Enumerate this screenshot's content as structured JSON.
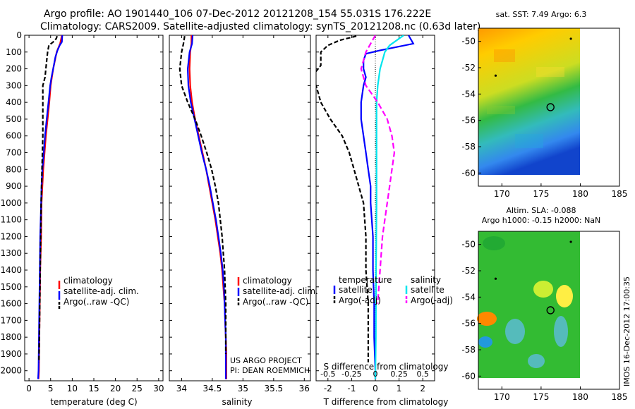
{
  "header": {
    "line1": "Argo profile: AO 1901440_106 07-Dec-2012 20121208_154 55.031S 176.222E",
    "line2": "Climatology: CARS2009. Satellite-adjusted climatology: synTS_20121208.nc (0.63d later)"
  },
  "colors": {
    "climatology": "#ff0000",
    "satellite": "#0000ff",
    "argo": "#000000",
    "sat_salinity": "#00e5ee",
    "argo_salinity": "#ff00ff"
  },
  "chart_data": [
    {
      "type": "line",
      "id": "temperature",
      "xlabel": "temperature (deg C)",
      "ylabel": "",
      "xlim": [
        -1,
        31
      ],
      "ylim": [
        2060,
        0
      ],
      "xticks": [
        0,
        5,
        10,
        15,
        20,
        25,
        30
      ],
      "yticks": [
        0,
        100,
        200,
        300,
        400,
        500,
        600,
        700,
        800,
        900,
        1000,
        1100,
        1200,
        1300,
        1400,
        1500,
        1600,
        1700,
        1800,
        1900,
        2000
      ],
      "legend": [
        "climatology",
        "satellite-adj. clim.",
        "Argo(..raw -QC)"
      ],
      "series": [
        {
          "name": "climatology",
          "color": "#ff0000",
          "dash": "",
          "points": [
            [
              7.6,
              0
            ],
            [
              7.2,
              50
            ],
            [
              6.7,
              80
            ],
            [
              6.4,
              100
            ],
            [
              6.0,
              150
            ],
            [
              5.6,
              200
            ],
            [
              5.3,
              250
            ],
            [
              5.0,
              300
            ],
            [
              4.7,
              400
            ],
            [
              4.3,
              500
            ],
            [
              3.9,
              600
            ],
            [
              3.6,
              700
            ],
            [
              3.3,
              800
            ],
            [
              3.1,
              900
            ],
            [
              2.9,
              1000
            ],
            [
              2.8,
              1200
            ],
            [
              2.6,
              1400
            ],
            [
              2.5,
              1600
            ],
            [
              2.4,
              1800
            ],
            [
              2.3,
              2000
            ],
            [
              2.2,
              2050
            ]
          ]
        },
        {
          "name": "satellite-adj. clim.",
          "color": "#0000ff",
          "dash": "",
          "points": [
            [
              7.7,
              0
            ],
            [
              7.6,
              40
            ],
            [
              7.1,
              60
            ],
            [
              6.6,
              90
            ],
            [
              6.1,
              130
            ],
            [
              5.6,
              200
            ],
            [
              5.2,
              250
            ],
            [
              4.9,
              300
            ],
            [
              4.5,
              400
            ],
            [
              4.1,
              500
            ],
            [
              3.7,
              600
            ],
            [
              3.4,
              700
            ],
            [
              3.1,
              800
            ],
            [
              2.9,
              900
            ],
            [
              2.8,
              1000
            ],
            [
              2.6,
              1200
            ],
            [
              2.5,
              1400
            ],
            [
              2.4,
              1600
            ],
            [
              2.3,
              1800
            ],
            [
              2.2,
              2000
            ],
            [
              2.1,
              2050
            ]
          ]
        },
        {
          "name": "Argo(..raw -QC)",
          "color": "#000000",
          "dash": "6,3",
          "points": [
            [
              6.5,
              5
            ],
            [
              6.3,
              20
            ],
            [
              5.6,
              40
            ],
            [
              4.6,
              60
            ],
            [
              4.3,
              100
            ],
            [
              4.1,
              150
            ],
            [
              3.9,
              200
            ],
            [
              3.7,
              250
            ],
            [
              3.2,
              300
            ],
            [
              3.2,
              400
            ],
            [
              3.2,
              500
            ],
            [
              3.2,
              600
            ],
            [
              3.1,
              700
            ],
            [
              3.0,
              800
            ],
            [
              2.9,
              900
            ],
            [
              2.8,
              1000
            ],
            [
              2.7,
              1200
            ],
            [
              2.6,
              1400
            ],
            [
              2.5,
              1600
            ],
            [
              2.4,
              1800
            ],
            [
              2.3,
              1950
            ]
          ]
        }
      ]
    },
    {
      "type": "line",
      "id": "salinity",
      "xlabel": "salinity",
      "xlim": [
        33.8,
        36.1
      ],
      "ylim": [
        2060,
        0
      ],
      "xticks": [
        34,
        34.5,
        35,
        35.5,
        36
      ],
      "legend": [
        "climatology",
        "satellite-adj. clim.",
        "Argo(..raw -QC)"
      ],
      "series": [
        {
          "name": "climatology",
          "color": "#ff0000",
          "dash": "",
          "points": [
            [
              34.16,
              0
            ],
            [
              34.16,
              50
            ],
            [
              34.14,
              100
            ],
            [
              34.13,
              200
            ],
            [
              34.14,
              300
            ],
            [
              34.17,
              400
            ],
            [
              34.22,
              500
            ],
            [
              34.28,
              600
            ],
            [
              34.34,
              700
            ],
            [
              34.4,
              800
            ],
            [
              34.45,
              900
            ],
            [
              34.5,
              1000
            ],
            [
              34.55,
              1100
            ],
            [
              34.59,
              1200
            ],
            [
              34.63,
              1300
            ],
            [
              34.66,
              1400
            ],
            [
              34.68,
              1500
            ],
            [
              34.7,
              1600
            ],
            [
              34.71,
              1700
            ],
            [
              34.72,
              1800
            ],
            [
              34.73,
              1900
            ],
            [
              34.73,
              2050
            ]
          ]
        },
        {
          "name": "satellite-adj. clim.",
          "color": "#0000ff",
          "dash": "",
          "points": [
            [
              34.18,
              0
            ],
            [
              34.17,
              50
            ],
            [
              34.13,
              100
            ],
            [
              34.1,
              200
            ],
            [
              34.11,
              300
            ],
            [
              34.15,
              400
            ],
            [
              34.21,
              500
            ],
            [
              34.27,
              600
            ],
            [
              34.33,
              700
            ],
            [
              34.4,
              800
            ],
            [
              34.46,
              900
            ],
            [
              34.51,
              1000
            ],
            [
              34.56,
              1100
            ],
            [
              34.6,
              1200
            ],
            [
              34.64,
              1300
            ],
            [
              34.67,
              1400
            ],
            [
              34.69,
              1500
            ],
            [
              34.7,
              1600
            ],
            [
              34.71,
              1700
            ],
            [
              34.72,
              1800
            ],
            [
              34.72,
              1900
            ],
            [
              34.72,
              2050
            ]
          ]
        },
        {
          "name": "Argo(..raw -QC)",
          "color": "#000000",
          "dash": "6,3",
          "points": [
            [
              34.05,
              5
            ],
            [
              34.03,
              50
            ],
            [
              34.0,
              100
            ],
            [
              33.97,
              200
            ],
            [
              34.0,
              300
            ],
            [
              34.1,
              400
            ],
            [
              34.22,
              500
            ],
            [
              34.32,
              600
            ],
            [
              34.41,
              700
            ],
            [
              34.49,
              800
            ],
            [
              34.55,
              900
            ],
            [
              34.6,
              1000
            ],
            [
              34.63,
              1100
            ],
            [
              34.66,
              1200
            ],
            [
              34.68,
              1300
            ],
            [
              34.7,
              1400
            ],
            [
              34.71,
              1500
            ],
            [
              34.72,
              1600
            ],
            [
              34.72,
              1700
            ],
            [
              34.72,
              1800
            ],
            [
              34.72,
              1900
            ]
          ]
        }
      ]
    },
    {
      "type": "line",
      "id": "difference",
      "xlabel": "T difference from climatology",
      "x2label": "S difference from climatology",
      "xlim": [
        -2.5,
        2.5
      ],
      "ylim": [
        2060,
        0
      ],
      "xticks": [
        -2,
        -1,
        0,
        1,
        2
      ],
      "x2ticks": [
        "-0.5",
        "-0.25",
        "0",
        "0.25",
        "0.5"
      ],
      "legend": {
        "left_title": "temperature",
        "right_title": "salinity",
        "left": [
          "satellite",
          "Argo(-adj)"
        ],
        "right": [
          "satellite",
          "Argo(-adj)"
        ]
      },
      "series": [
        {
          "name": "satellite",
          "color": "#0000ff",
          "dash": "",
          "points": [
            [
              1.4,
              0
            ],
            [
              1.6,
              50
            ],
            [
              0.2,
              90
            ],
            [
              -0.4,
              110
            ],
            [
              -0.5,
              150
            ],
            [
              -0.5,
              200
            ],
            [
              -0.4,
              250
            ],
            [
              -0.5,
              300
            ],
            [
              -0.6,
              400
            ],
            [
              -0.6,
              500
            ],
            [
              -0.5,
              600
            ],
            [
              -0.4,
              700
            ],
            [
              -0.3,
              800
            ],
            [
              -0.2,
              900
            ],
            [
              -0.2,
              1000
            ],
            [
              -0.1,
              1200
            ],
            [
              -0.1,
              1400
            ],
            [
              -0.05,
              1600
            ],
            [
              -0.05,
              1800
            ],
            [
              0,
              2000
            ],
            [
              0,
              2050
            ]
          ]
        },
        {
          "name": "Argo(-adj)",
          "color": "#000000",
          "dash": "6,3",
          "points": [
            [
              -0.8,
              5
            ],
            [
              -1.5,
              30
            ],
            [
              -2.0,
              60
            ],
            [
              -2.3,
              100
            ],
            [
              -2.3,
              180
            ],
            [
              -2.7,
              250
            ],
            [
              -2.5,
              300
            ],
            [
              -2.3,
              400
            ],
            [
              -1.9,
              500
            ],
            [
              -1.4,
              600
            ],
            [
              -1.1,
              700
            ],
            [
              -0.9,
              800
            ],
            [
              -0.7,
              900
            ],
            [
              -0.5,
              1000
            ],
            [
              -0.4,
              1200
            ],
            [
              -0.4,
              1400
            ],
            [
              -0.3,
              1600
            ],
            [
              -0.3,
              1800
            ],
            [
              -0.3,
              1950
            ]
          ]
        },
        {
          "name": "satellite",
          "color": "#00e5ee",
          "dash": "",
          "points": [
            [
              1.2,
              0
            ],
            [
              0.6,
              60
            ],
            [
              0.4,
              100
            ],
            [
              0.3,
              150
            ],
            [
              0.2,
              200
            ],
            [
              0.1,
              300
            ],
            [
              0.05,
              400
            ],
            [
              0.05,
              500
            ],
            [
              0.05,
              700
            ],
            [
              0.05,
              1000
            ],
            [
              0.03,
              1400
            ],
            [
              0.02,
              1800
            ],
            [
              0,
              2050
            ]
          ]
        },
        {
          "name": "Argo(-adj)",
          "color": "#ff00ff",
          "dash": "8,4",
          "points": [
            [
              0.0,
              0
            ],
            [
              -0.4,
              100
            ],
            [
              -0.6,
              200
            ],
            [
              -0.4,
              300
            ],
            [
              0.1,
              400
            ],
            [
              0.5,
              500
            ],
            [
              0.7,
              600
            ],
            [
              0.8,
              700
            ],
            [
              0.7,
              800
            ],
            [
              0.6,
              900
            ],
            [
              0.5,
              1000
            ],
            [
              0.4,
              1100
            ],
            [
              0.3,
              1200
            ],
            [
              0.25,
              1300
            ],
            [
              0.2,
              1400
            ],
            [
              0.15,
              1500
            ],
            [
              0.1,
              1600
            ]
          ]
        }
      ]
    },
    {
      "type": "heatmap",
      "id": "sst_map",
      "title": "sat. SST: 7.49 Argo: 6.3",
      "xlim": [
        167,
        185
      ],
      "ylim": [
        -61,
        -49
      ],
      "xticks": [
        170,
        175,
        180,
        185
      ],
      "yticks": [
        -50,
        -52,
        -54,
        -56,
        -58,
        -60
      ],
      "data_extent": [
        167,
        180,
        -60,
        -49.5
      ],
      "argo_position": [
        176.2,
        -55.0
      ],
      "dots": [
        [
          169.2,
          -52.6
        ],
        [
          178.8,
          -49.8
        ]
      ],
      "gradient": [
        "#ff9900",
        "#ffcc00",
        "#99dd33",
        "#33bb44",
        "#33bbbb",
        "#3388ee",
        "#1144cc"
      ]
    },
    {
      "type": "heatmap",
      "id": "sla_map",
      "title": "Altim. SLA: -0.088",
      "subtitle": "Argo h1000: -0.15 h2000: NaN",
      "xlim": [
        167,
        185
      ],
      "ylim": [
        -61,
        -49
      ],
      "xticks": [
        170,
        175,
        180,
        185
      ],
      "yticks": [
        -50,
        -52,
        -54,
        -56,
        -58,
        -60
      ],
      "data_extent": [
        167,
        180,
        -60,
        -49.5
      ],
      "argo_position": [
        176.2,
        -55.0
      ],
      "dots": [
        [
          169.2,
          -52.6
        ],
        [
          178.8,
          -49.8
        ]
      ]
    }
  ],
  "credits": {
    "line1": "US ARGO PROJECT",
    "line2": "PI: DEAN ROEMMICH"
  },
  "stamp": "IMOS 16-Dec-2012 17:00:35"
}
